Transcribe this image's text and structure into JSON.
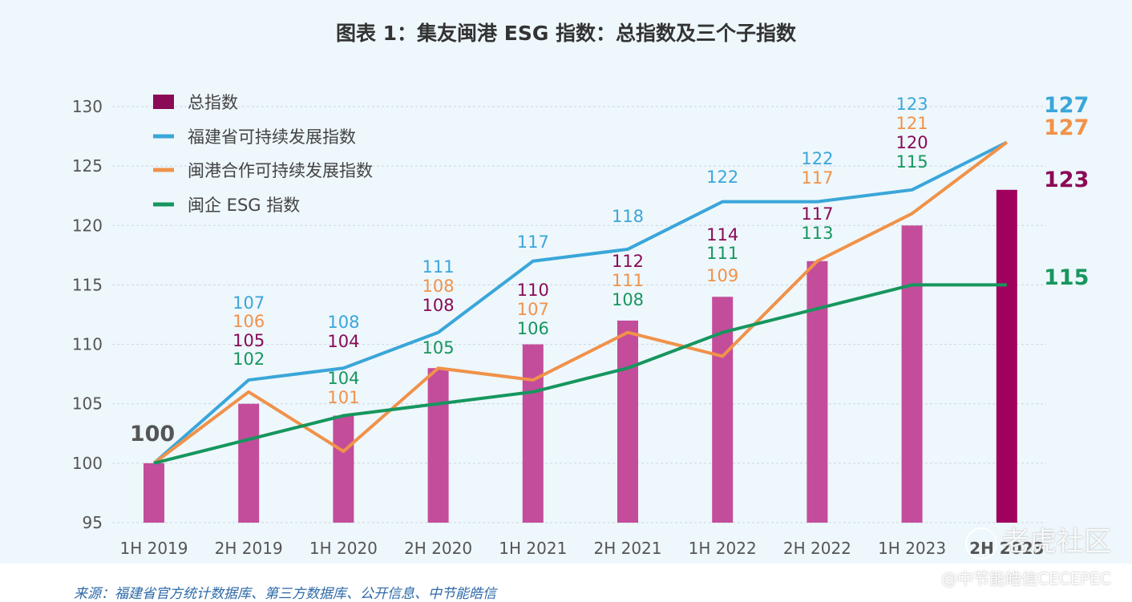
{
  "title": "图表 1：集友闽港 ESG 指数：总指数及三个子指数",
  "source": "来源：福建省官方统计数据库、第三方数据库、公开信息、中节能皓信",
  "watermark": {
    "main": "老虎社区",
    "sub": "@中节能皓信CECEPEC"
  },
  "colors": {
    "total_bar": "#c34d9a",
    "total_bar_last": "#a0005e",
    "fujian": "#3aa6d9",
    "minggang": "#f0924a",
    "esg": "#16965e",
    "total_label": "#8a0a56"
  },
  "chart_data": {
    "type": "bar+line",
    "categories": [
      "1H 2019",
      "2H 2019",
      "1H 2020",
      "2H 2020",
      "1H 2021",
      "2H 2021",
      "1H 2022",
      "2H 2022",
      "1H 2023",
      "2H 2023"
    ],
    "ylim": [
      95,
      130
    ],
    "yticks": [
      95,
      100,
      105,
      110,
      115,
      120,
      125,
      130
    ],
    "series": [
      {
        "name": "总指数",
        "kind": "bar",
        "values": [
          100,
          105,
          104,
          108,
          110,
          112,
          114,
          117,
          120,
          123
        ]
      },
      {
        "name": "福建省可持续发展指数",
        "kind": "line",
        "values": [
          100,
          107,
          108,
          111,
          117,
          118,
          122,
          122,
          123,
          127
        ]
      },
      {
        "name": "闽港合作可持续发展指数",
        "kind": "line",
        "values": [
          100,
          106,
          101,
          108,
          107,
          111,
          109,
          117,
          121,
          127
        ]
      },
      {
        "name": "闽企 ESG 指数",
        "kind": "line",
        "values": [
          100,
          102,
          104,
          105,
          106,
          108,
          111,
          113,
          115,
          115
        ]
      }
    ],
    "point_labels": {
      "first": "100",
      "blue": [
        "107",
        "108",
        "111",
        "117",
        "118",
        "122",
        "122",
        "123"
      ],
      "orange": [
        "106",
        "101",
        "108",
        "107",
        "111",
        "109",
        "117",
        "121"
      ],
      "total": [
        "105",
        "104",
        "108",
        "110",
        "112",
        "114",
        "117",
        "120"
      ],
      "green": [
        "102",
        "104",
        "105",
        "106",
        "108",
        "111",
        "113",
        "115"
      ]
    },
    "end_labels": {
      "blue": "127",
      "orange": "127",
      "total": "123",
      "green": "115"
    }
  }
}
